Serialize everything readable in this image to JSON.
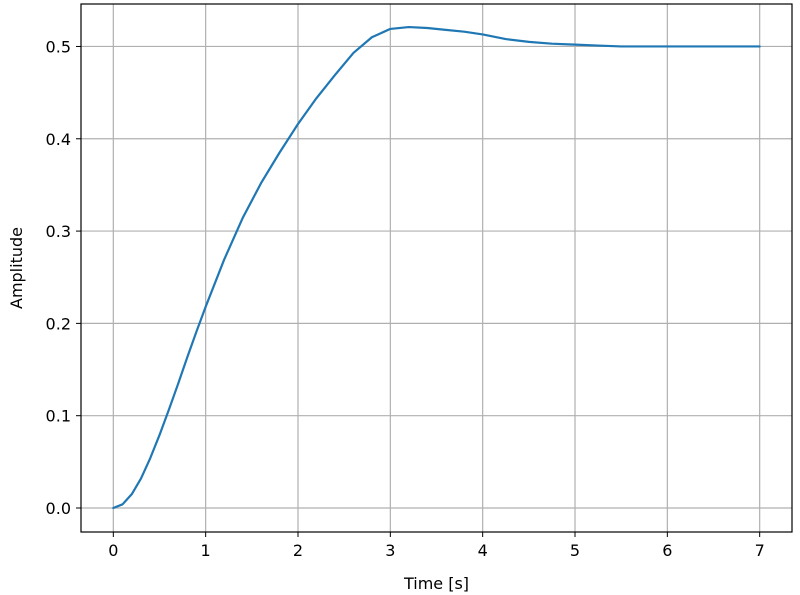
{
  "chart_data": {
    "type": "line",
    "xlabel": "Time [s]",
    "ylabel": "Amplitude",
    "xlim": [
      -0.35,
      7.35
    ],
    "ylim": [
      -0.026,
      0.546
    ],
    "xticks": [
      0,
      1,
      2,
      3,
      4,
      5,
      6,
      7
    ],
    "xtick_labels": [
      "0",
      "1",
      "2",
      "3",
      "4",
      "5",
      "6",
      "7"
    ],
    "yticks": [
      0.0,
      0.1,
      0.2,
      0.3,
      0.4,
      0.5
    ],
    "ytick_labels": [
      "0.0",
      "0.1",
      "0.2",
      "0.3",
      "0.4",
      "0.5"
    ],
    "grid": true,
    "legend": "none",
    "series": [
      {
        "color": "#1f77b4",
        "x": [
          0,
          0.1,
          0.2,
          0.3,
          0.4,
          0.5,
          0.6,
          0.7,
          0.8,
          0.9,
          1.0,
          1.2,
          1.4,
          1.6,
          1.8,
          2.0,
          2.2,
          2.4,
          2.6,
          2.8,
          3.0,
          3.2,
          3.4,
          3.6,
          3.8,
          4.0,
          4.25,
          4.5,
          4.75,
          5.0,
          5.25,
          5.5,
          5.75,
          6.0,
          6.25,
          6.5,
          6.75,
          7.0
        ],
        "y": [
          0.0,
          0.004,
          0.015,
          0.032,
          0.054,
          0.079,
          0.106,
          0.134,
          0.163,
          0.191,
          0.218,
          0.269,
          0.314,
          0.352,
          0.385,
          0.416,
          0.444,
          0.469,
          0.493,
          0.51,
          0.519,
          0.521,
          0.52,
          0.518,
          0.516,
          0.513,
          0.508,
          0.505,
          0.503,
          0.502,
          0.501,
          0.5,
          0.5,
          0.5,
          0.5,
          0.5,
          0.5,
          0.5
        ]
      }
    ]
  }
}
